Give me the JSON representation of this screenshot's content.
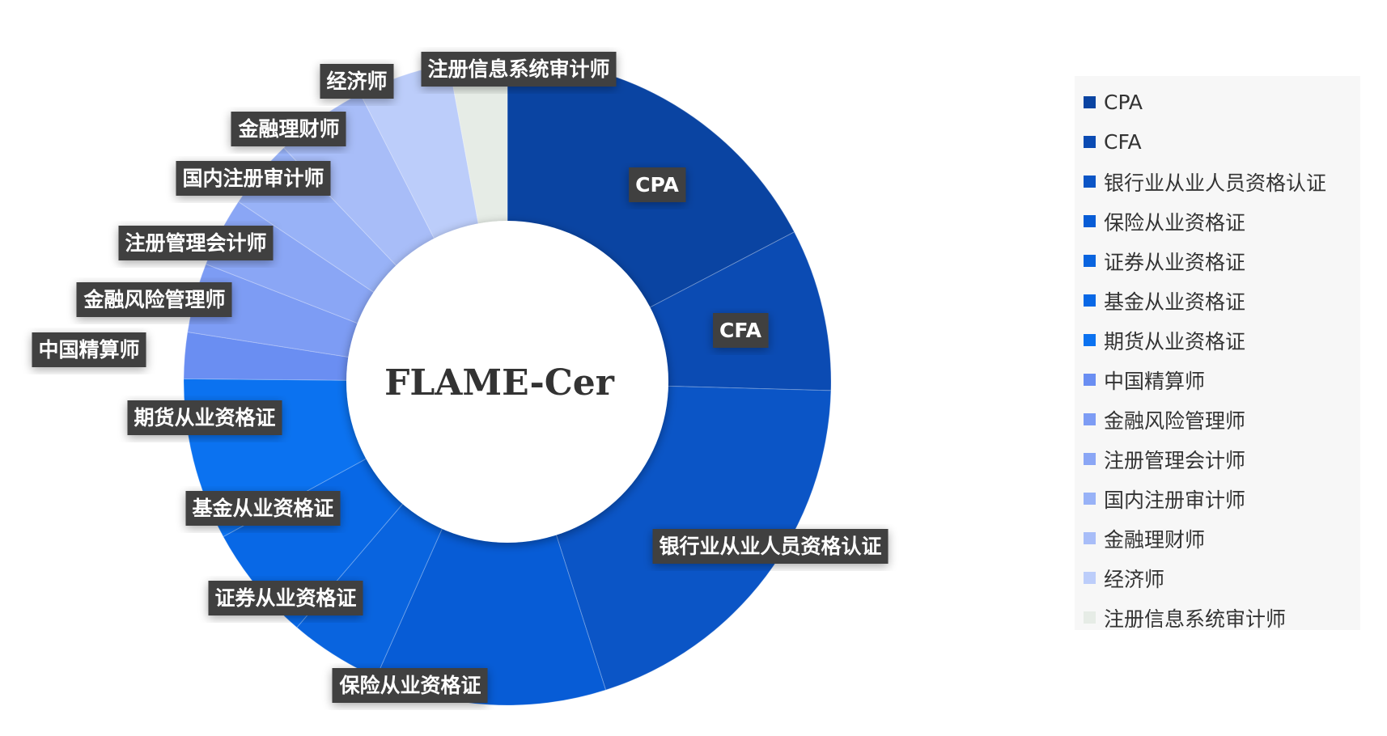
{
  "chart_data": {
    "type": "pie",
    "center_label": "FLAME-Cer",
    "slices": [
      {
        "label": "CPA",
        "value": 15,
        "color": "#0a44a2"
      },
      {
        "label": "CFA",
        "value": 7,
        "color": "#0b4bb3"
      },
      {
        "label": "银行业从业人员资格认证",
        "value": 17,
        "color": "#0b55c6"
      },
      {
        "label": "保险从业资格证",
        "value": 10,
        "color": "#075cd6"
      },
      {
        "label": "证券从业资格证",
        "value": 4,
        "color": "#0964df"
      },
      {
        "label": "基金从业资格证",
        "value": 5,
        "color": "#0868e6"
      },
      {
        "label": "期货从业资格证",
        "value": 7,
        "color": "#0b72f0"
      },
      {
        "label": "中国精算师",
        "value": 2,
        "color": "#6a8ef2"
      },
      {
        "label": "金融风险管理师",
        "value": 3,
        "color": "#7d9cf4"
      },
      {
        "label": "注册管理会计师",
        "value": 3,
        "color": "#8aa6f5"
      },
      {
        "label": "国内注册审计师",
        "value": 3,
        "color": "#98b2f7"
      },
      {
        "label": "金融理财师",
        "value": 4,
        "color": "#a8bdf8"
      },
      {
        "label": "经济师",
        "value": 4,
        "color": "#bccdfa"
      },
      {
        "label": "注册信息系统审计师",
        "value": 2.5,
        "color": "#e6ece6"
      }
    ],
    "legend_position": "right"
  }
}
